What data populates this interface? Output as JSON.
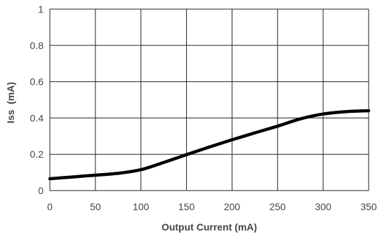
{
  "chart_data": {
    "type": "line",
    "title": "",
    "xlabel": "Output Current (mA)",
    "ylabel": "Iss  (mA)",
    "xlim": [
      0,
      350
    ],
    "ylim": [
      0,
      1
    ],
    "xticks": [
      0,
      50,
      100,
      150,
      200,
      250,
      300,
      350
    ],
    "yticks": [
      0,
      0.2,
      0.4,
      0.6,
      0.8,
      1
    ],
    "ytick_labels": [
      "0",
      "0.2",
      "0.4",
      "0.6",
      "0.8",
      "1"
    ],
    "grid": true,
    "legend": "none",
    "series": [
      {
        "color": "#000000",
        "x": [
          0,
          25,
          50,
          75,
          100,
          125,
          150,
          175,
          200,
          225,
          250,
          275,
          300,
          325,
          350
        ],
        "y": [
          0.065,
          0.075,
          0.085,
          0.095,
          0.115,
          0.155,
          0.198,
          0.24,
          0.28,
          0.318,
          0.355,
          0.395,
          0.422,
          0.435,
          0.44
        ]
      }
    ]
  }
}
